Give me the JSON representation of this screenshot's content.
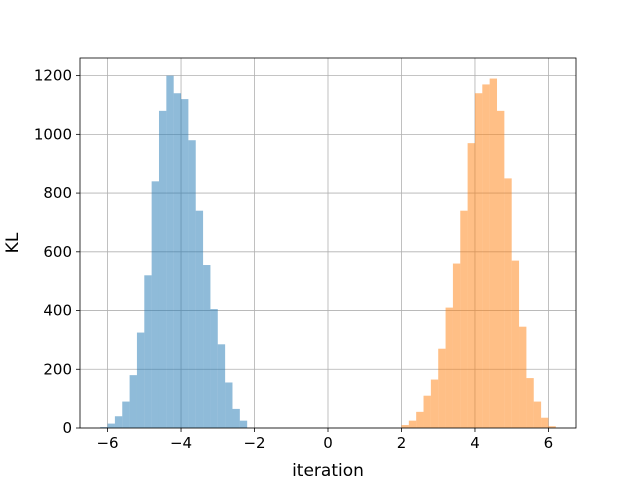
{
  "chart_data": {
    "type": "bar",
    "subtype": "histogram",
    "title": "",
    "xlabel": "iteration",
    "ylabel": "KL",
    "xlim": [
      -6.75,
      6.75
    ],
    "ylim": [
      0,
      1260
    ],
    "xticks": [
      -6,
      -4,
      -2,
      0,
      2,
      4,
      6
    ],
    "yticks": [
      0,
      200,
      400,
      600,
      800,
      1000,
      1200
    ],
    "grid": true,
    "legend": "none",
    "bin_width": 0.2,
    "series": [
      {
        "color": "#1f77b4",
        "alpha": 0.5,
        "bins": [
          [
            -6.2,
            3
          ],
          [
            -6.0,
            15
          ],
          [
            -5.8,
            40
          ],
          [
            -5.6,
            90
          ],
          [
            -5.4,
            180
          ],
          [
            -5.2,
            325
          ],
          [
            -5.0,
            520
          ],
          [
            -4.8,
            840
          ],
          [
            -4.6,
            1080
          ],
          [
            -4.4,
            1200
          ],
          [
            -4.2,
            1140
          ],
          [
            -4.0,
            1120
          ],
          [
            -3.8,
            980
          ],
          [
            -3.6,
            740
          ],
          [
            -3.4,
            555
          ],
          [
            -3.2,
            405
          ],
          [
            -3.0,
            285
          ],
          [
            -2.8,
            155
          ],
          [
            -2.6,
            65
          ],
          [
            -2.4,
            25
          ]
        ]
      },
      {
        "color": "#ff7f0e",
        "alpha": 0.5,
        "bins": [
          [
            2.0,
            10
          ],
          [
            2.2,
            25
          ],
          [
            2.4,
            55
          ],
          [
            2.6,
            110
          ],
          [
            2.8,
            165
          ],
          [
            3.0,
            270
          ],
          [
            3.2,
            410
          ],
          [
            3.4,
            560
          ],
          [
            3.6,
            740
          ],
          [
            3.8,
            970
          ],
          [
            4.0,
            1140
          ],
          [
            4.2,
            1170
          ],
          [
            4.4,
            1190
          ],
          [
            4.6,
            1080
          ],
          [
            4.8,
            850
          ],
          [
            5.0,
            570
          ],
          [
            5.2,
            345
          ],
          [
            5.4,
            170
          ],
          [
            5.6,
            90
          ],
          [
            5.8,
            35
          ],
          [
            6.0,
            6
          ]
        ]
      }
    ]
  }
}
